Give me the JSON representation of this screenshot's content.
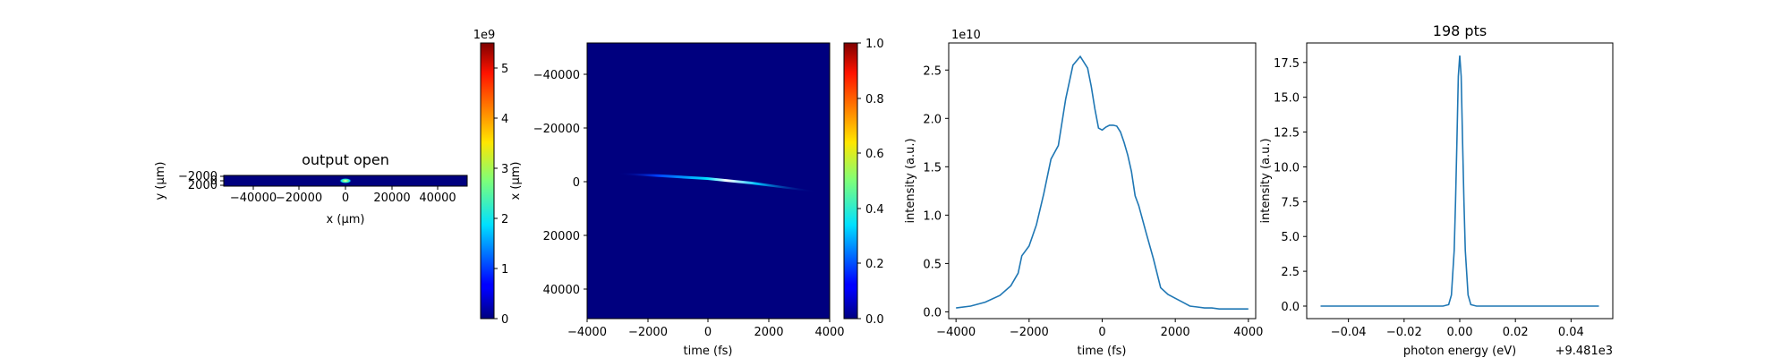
{
  "panel1": {
    "title": "output open",
    "xlabel": "x (μm)",
    "ylabel": "y (μm)",
    "xticks": [
      "−40000",
      "−20000",
      "0",
      "20000",
      "40000"
    ],
    "yticks": [
      "−2000",
      "0",
      "2000"
    ],
    "colorbar_ticks": [
      "0",
      "1",
      "2",
      "3",
      "4",
      "5"
    ],
    "colorbar_offset": "1e9"
  },
  "panel2": {
    "xlabel": "time (fs)",
    "ylabel": "x (μm)",
    "xticks": [
      "−4000",
      "−2000",
      "0",
      "2000",
      "4000"
    ],
    "yticks": [
      "−40000",
      "−20000",
      "0",
      "20000",
      "40000"
    ],
    "colorbar_ticks": [
      "0.0",
      "0.2",
      "0.4",
      "0.6",
      "0.8",
      "1.0"
    ]
  },
  "panel3": {
    "xlabel": "time (fs)",
    "ylabel": "intensity (a.u.)",
    "offset": "1e10",
    "xticks": [
      "−4000",
      "−2000",
      "0",
      "2000",
      "4000"
    ],
    "yticks": [
      "0.0",
      "0.5",
      "1.0",
      "1.5",
      "2.0",
      "2.5"
    ]
  },
  "panel4": {
    "title": "198 pts",
    "xlabel": "photon energy (eV)",
    "ylabel": "intensity (a.u.)",
    "offset": "+9.481e3",
    "xticks": [
      "−0.04",
      "−0.02",
      "0.00",
      "0.02",
      "0.04"
    ],
    "yticks": [
      "0.0",
      "2.5",
      "5.0",
      "7.5",
      "10.0",
      "12.5",
      "15.0",
      "17.5"
    ]
  },
  "colors": {
    "line": "#1f77b4",
    "map_bg": "#00007f"
  },
  "chart_data": [
    {
      "type": "heatmap",
      "title": "output open",
      "xlabel": "x (μm)",
      "ylabel": "y (μm)",
      "xlim": [
        -53000,
        53000
      ],
      "ylim": [
        2400,
        -2400
      ],
      "colorbar": {
        "range": [
          0,
          5500000000.0
        ],
        "offset": "1e9",
        "colormap": "jet"
      },
      "features": [
        {
          "x": 0,
          "y": 0,
          "peak": 5500000000.0,
          "note": "small bright spot at center"
        }
      ]
    },
    {
      "type": "heatmap",
      "xlabel": "time (fs)",
      "ylabel": "x (μm)",
      "xlim": [
        -4000,
        4000
      ],
      "ylim": [
        53000,
        -53000
      ],
      "colorbar": {
        "range": [
          0,
          1
        ],
        "colormap": "jet"
      },
      "features": [
        {
          "trace_from": [
            -3000,
            -2500
          ],
          "trace_to": [
            3500,
            2000
          ],
          "peak": 1.0
        }
      ]
    },
    {
      "type": "line",
      "xlabel": "time (fs)",
      "ylabel": "intensity (a.u.)",
      "y_offset_label": "1e10",
      "xlim": [
        -4200,
        4200
      ],
      "ylim": [
        -0.07,
        2.78
      ],
      "x": [
        -4000,
        -3600,
        -3200,
        -2800,
        -2500,
        -2300,
        -2200,
        -2000,
        -1800,
        -1600,
        -1400,
        -1200,
        -1000,
        -800,
        -600,
        -400,
        -300,
        -200,
        -100,
        0,
        100,
        200,
        300,
        400,
        500,
        600,
        700,
        800,
        900,
        1000,
        1200,
        1400,
        1600,
        1800,
        2000,
        2200,
        2400,
        2600,
        2800,
        3000,
        3200,
        3400,
        3600,
        3800,
        4000
      ],
      "y": [
        0.04,
        0.06,
        0.1,
        0.17,
        0.27,
        0.4,
        0.58,
        0.68,
        0.9,
        1.22,
        1.58,
        1.72,
        2.2,
        2.55,
        2.64,
        2.52,
        2.33,
        2.1,
        1.9,
        1.88,
        1.91,
        1.93,
        1.93,
        1.92,
        1.86,
        1.75,
        1.62,
        1.45,
        1.2,
        1.1,
        0.82,
        0.55,
        0.25,
        0.18,
        0.14,
        0.1,
        0.06,
        0.05,
        0.04,
        0.04,
        0.03,
        0.03,
        0.03,
        0.03,
        0.03
      ]
    },
    {
      "type": "line",
      "title": "198 pts",
      "xlabel": "photon energy (eV)",
      "ylabel": "intensity (a.u.)",
      "x_offset_label": "+9.481e3",
      "xlim": [
        -0.055,
        0.055
      ],
      "ylim": [
        -0.9,
        18.9
      ],
      "x": [
        -0.05,
        -0.02,
        -0.006,
        -0.004,
        -0.003,
        -0.002,
        -0.0015,
        -0.001,
        -0.0005,
        0.0,
        0.0005,
        0.001,
        0.0015,
        0.002,
        0.003,
        0.004,
        0.006,
        0.02,
        0.05
      ],
      "y": [
        0.0,
        0.0,
        0.0,
        0.1,
        0.8,
        4.0,
        7.5,
        12.0,
        16.5,
        18.0,
        16.5,
        12.0,
        7.5,
        4.0,
        0.8,
        0.1,
        0.0,
        0.0,
        0.0
      ]
    }
  ]
}
